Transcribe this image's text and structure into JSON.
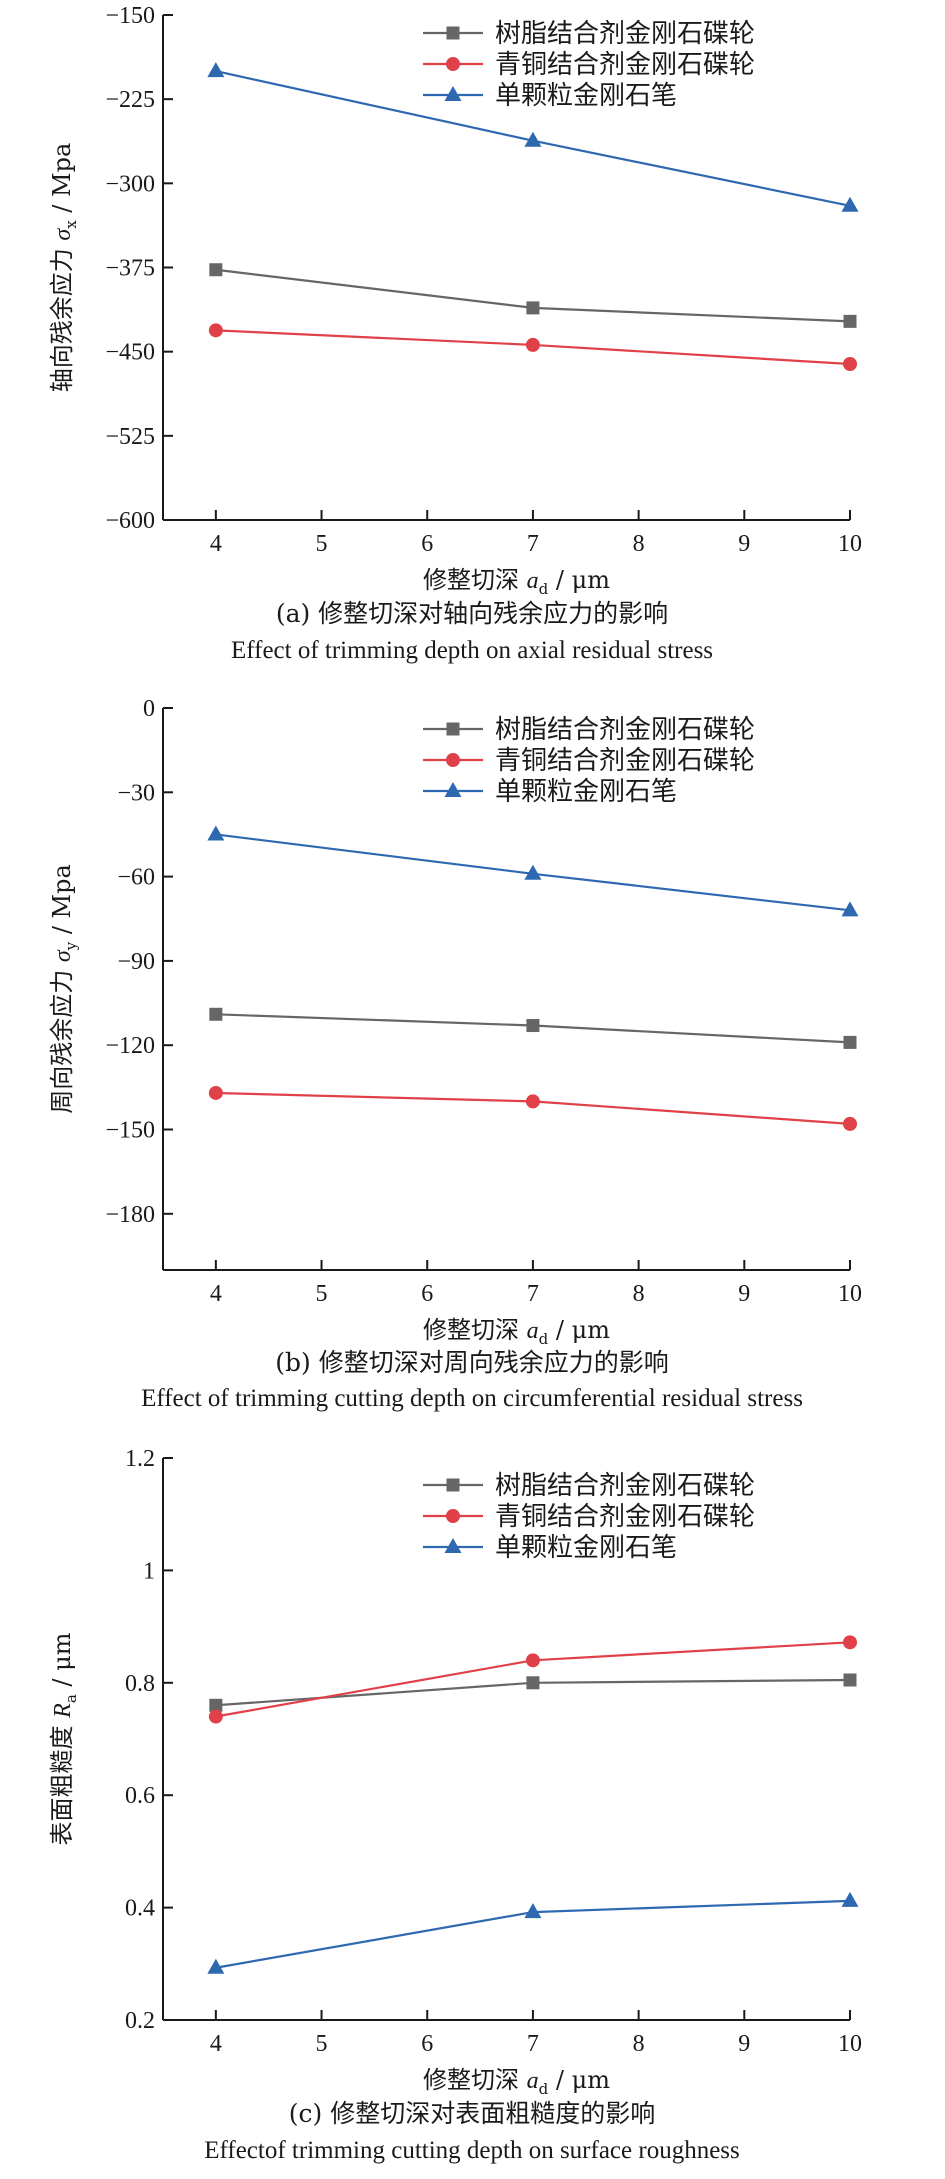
{
  "colors": {
    "resin": "#666666",
    "bronze": "#e04048",
    "diamond": "#2e68b0",
    "axis": "#1a1a1a"
  },
  "legend": [
    "树脂结合剂金刚石碟轮",
    "青铜结合剂金刚石碟轮",
    "单颗粒金刚石笔"
  ],
  "chart_data": [
    {
      "type": "line",
      "x": [
        4,
        7,
        10
      ],
      "xticks": [
        4,
        5,
        6,
        7,
        8,
        9,
        10
      ],
      "xlim": [
        3.5,
        10
      ],
      "xlabel": {
        "pre": "修整切深 ",
        "var": "a",
        "sub": "d",
        "post": " / μm"
      },
      "ylabel": {
        "pre": "轴向残余应力 ",
        "var": "σ",
        "sub": "x",
        "post": " / Mpa"
      },
      "ylim": [
        -600,
        -150
      ],
      "yticks": [
        -150,
        -225,
        -300,
        -375,
        -450,
        -525,
        -600
      ],
      "caption_cn": "(a) 修整切深对轴向残余应力的影响",
      "caption_en": "Effect of trimming depth on axial residual stress",
      "series": [
        {
          "name": "树脂结合剂金刚石碟轮",
          "marker": "square",
          "values": [
            -377,
            -411,
            -423
          ]
        },
        {
          "name": "青铜结合剂金刚石碟轮",
          "marker": "circle",
          "values": [
            -431,
            -444,
            -461
          ]
        },
        {
          "name": "单颗粒金刚石笔",
          "marker": "triangle",
          "values": [
            -200,
            -262,
            -320
          ]
        }
      ]
    },
    {
      "type": "line",
      "x": [
        4,
        7,
        10
      ],
      "xticks": [
        4,
        5,
        6,
        7,
        8,
        9,
        10
      ],
      "xlim": [
        3.5,
        10
      ],
      "xlabel": {
        "pre": "修整切深 ",
        "var": "a",
        "sub": "d",
        "post": " / μm"
      },
      "ylabel": {
        "pre": "周向残余应力 ",
        "var": "σ",
        "sub": "y",
        "post": " / Mpa"
      },
      "ylim": [
        -200,
        0
      ],
      "yticks": [
        0,
        -30,
        -60,
        -90,
        -120,
        -150,
        -180
      ],
      "caption_cn": "(b) 修整切深对周向残余应力的影响",
      "caption_en": "Effect of trimming cutting depth on circumferential residual stress",
      "series": [
        {
          "name": "树脂结合剂金刚石碟轮",
          "marker": "square",
          "values": [
            -109,
            -113,
            -119
          ]
        },
        {
          "name": "青铜结合剂金刚石碟轮",
          "marker": "circle",
          "values": [
            -137,
            -140,
            -148
          ]
        },
        {
          "name": "单颗粒金刚石笔",
          "marker": "triangle",
          "values": [
            -45,
            -59,
            -72
          ]
        }
      ]
    },
    {
      "type": "line",
      "x": [
        4,
        7,
        10
      ],
      "xticks": [
        4,
        5,
        6,
        7,
        8,
        9,
        10
      ],
      "xlim": [
        3.5,
        10
      ],
      "xlabel": {
        "pre": "修整切深 ",
        "var": "a",
        "sub": "d",
        "post": " / μm"
      },
      "ylabel": {
        "pre": "表面粗糙度 ",
        "var": "R",
        "sub": "a",
        "post": " / μm"
      },
      "ylim": [
        0.2,
        1.2
      ],
      "yticks": [
        0.2,
        0.4,
        0.6,
        0.8,
        1.0,
        1.2
      ],
      "caption_cn": "(c) 修整切深对表面粗糙度的影响",
      "caption_en": "Effectof trimming cutting depth on surface roughness",
      "series": [
        {
          "name": "树脂结合剂金刚石碟轮",
          "marker": "square",
          "values": [
            0.76,
            0.8,
            0.805
          ]
        },
        {
          "name": "青铜结合剂金刚石碟轮",
          "marker": "circle",
          "values": [
            0.74,
            0.84,
            0.872
          ]
        },
        {
          "name": "单颗粒金刚石笔",
          "marker": "triangle",
          "values": [
            0.293,
            0.392,
            0.412
          ]
        }
      ]
    }
  ]
}
